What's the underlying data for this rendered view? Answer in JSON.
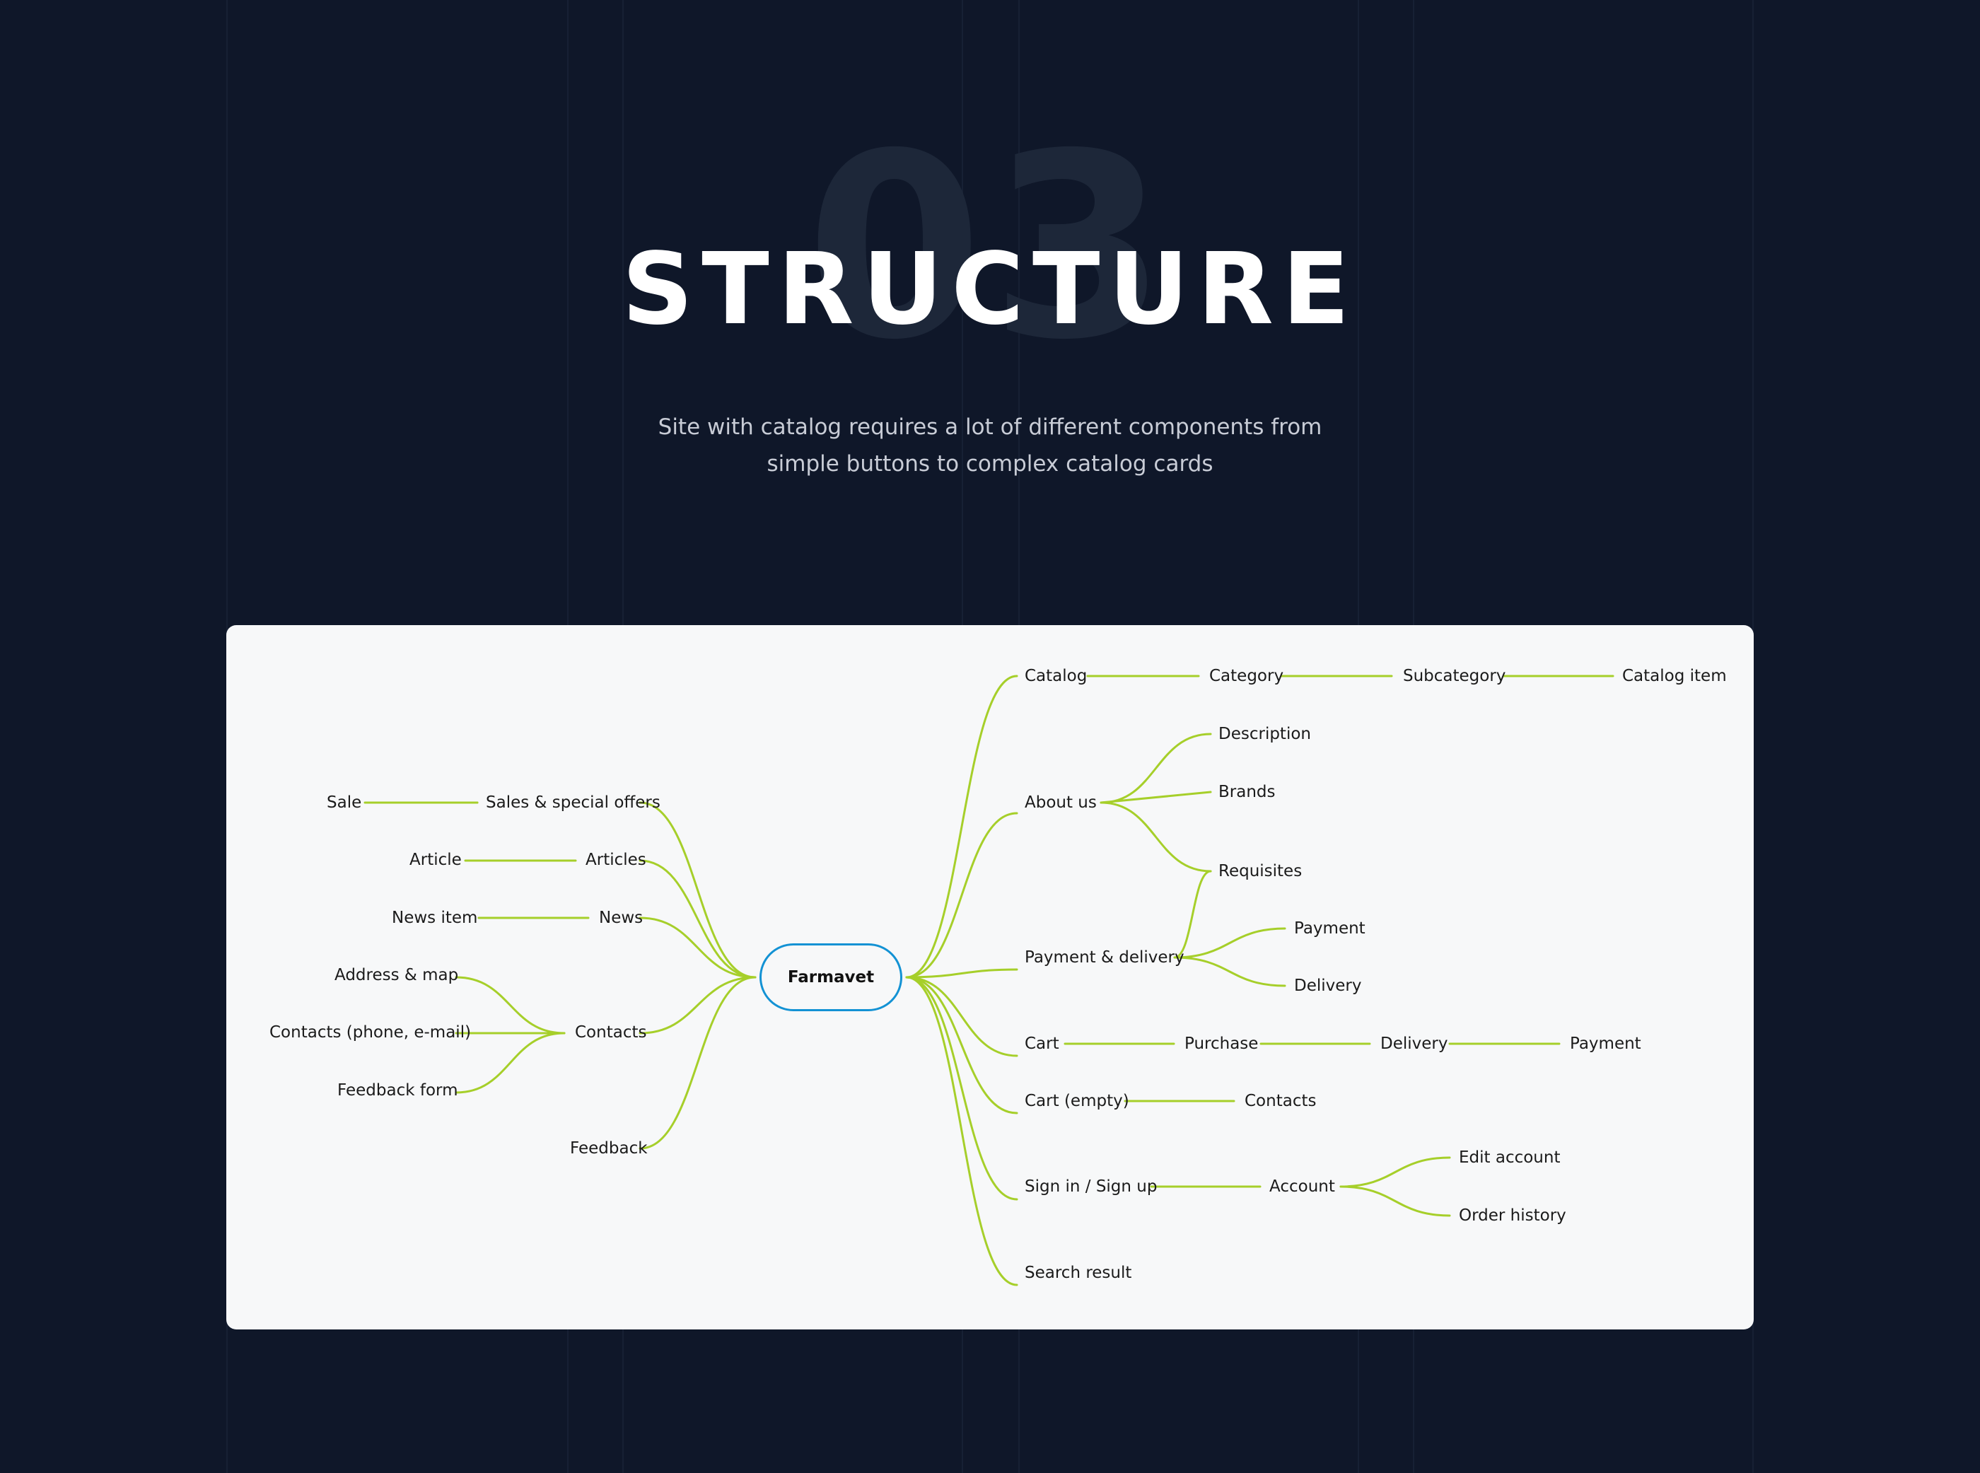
{
  "hero": {
    "number": "03",
    "title": "STRUCTURE",
    "subtitle_line1": "Site with catalog requires a lot of different components from",
    "subtitle_line2": "simple buttons to complex catalog cards"
  },
  "colors": {
    "background": "#0f1729",
    "panel": "#f7f8f9",
    "branch": "#a6cf2a",
    "root_border": "#1392d4"
  },
  "mindmap": {
    "root": "Farmavet",
    "left": [
      {
        "label": "Sales & special offers",
        "children": [
          "Sale"
        ]
      },
      {
        "label": "Articles",
        "children": [
          "Article"
        ]
      },
      {
        "label": "News",
        "children": [
          "News item"
        ]
      },
      {
        "label": "Contacts",
        "children": [
          "Address & map",
          "Contacts (phone, e-mail)",
          "Feedback form"
        ]
      },
      {
        "label": "Feedback",
        "children": []
      }
    ],
    "right": [
      {
        "label": "Catalog",
        "chain": [
          "Category",
          "Subcategory",
          "Catalog item"
        ]
      },
      {
        "label": "About us",
        "children": [
          "Description",
          "Brands",
          "Requisites"
        ]
      },
      {
        "label": "Payment & delivery",
        "children": [
          "Payment",
          "Delivery"
        ]
      },
      {
        "label": "Cart",
        "chain": [
          "Purchase",
          "Delivery",
          "Payment"
        ]
      },
      {
        "label": "Cart (empty)",
        "chain": [
          "Contacts"
        ]
      },
      {
        "label": "Sign in / Sign up",
        "chain": [
          "Account"
        ],
        "account_children": [
          "Edit account",
          "Order history"
        ]
      },
      {
        "label": "Search result",
        "chain": []
      }
    ]
  }
}
